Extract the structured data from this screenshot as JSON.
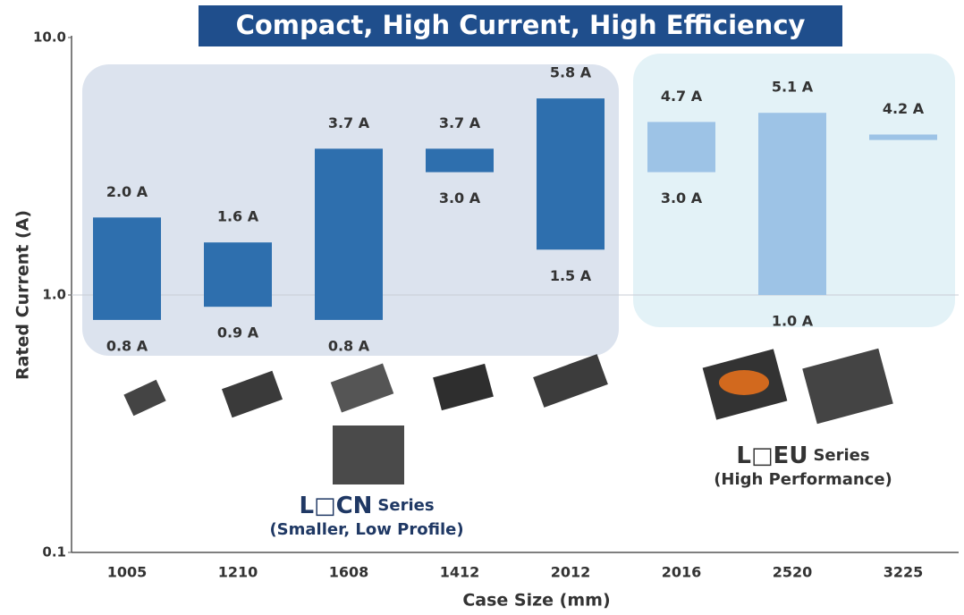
{
  "chart_data": {
    "type": "range-bar",
    "title": "Compact, High Current, High Efficiency",
    "y_label": "Rated Current (A)",
    "x_label": "Case Size (mm)",
    "categories": [
      "1005",
      "1210",
      "1608",
      "1412",
      "2012",
      "2016",
      "2520",
      "3225"
    ],
    "series": [
      {
        "values": [
          0.8,
          0.9,
          0.8,
          3.0,
          1.5,
          3.0,
          1.0,
          4.0
        ],
        "value_labels": [
          "0.8 A",
          "0.9 A",
          "0.8 A",
          "3.0 A",
          "1.5 A",
          "3.0 A",
          "1.0 A",
          null
        ]
      },
      {
        "values": [
          2.0,
          1.6,
          3.7,
          3.7,
          5.8,
          4.7,
          5.1,
          4.2
        ],
        "value_labels": [
          "2.0 A",
          "1.6 A",
          "3.7 A",
          "3.7 A",
          "5.8 A",
          "4.7 A",
          "5.1 A",
          "4.2 A"
        ]
      }
    ],
    "bar_colors": [
      "#2e6fae",
      "#2e6fae",
      "#2e6fae",
      "#2e6fae",
      "#2e6fae",
      "#9dc3e6",
      "#9dc3e6",
      "#9dc3e6"
    ],
    "ylim": [
      0.1,
      10
    ],
    "log_scale": true,
    "grid": true,
    "yticks": [
      0.1,
      {
        "value": 1,
        "label": "1.0"
      },
      {
        "value": 10,
        "label": "10.0"
      }
    ],
    "groups": [
      {
        "name": "L□CN",
        "suffix": "Series",
        "subtitle": "(Smaller, Low Profile)"
      },
      {
        "name": "L□EU",
        "suffix": "Series",
        "subtitle": "(High Performance)"
      }
    ]
  }
}
